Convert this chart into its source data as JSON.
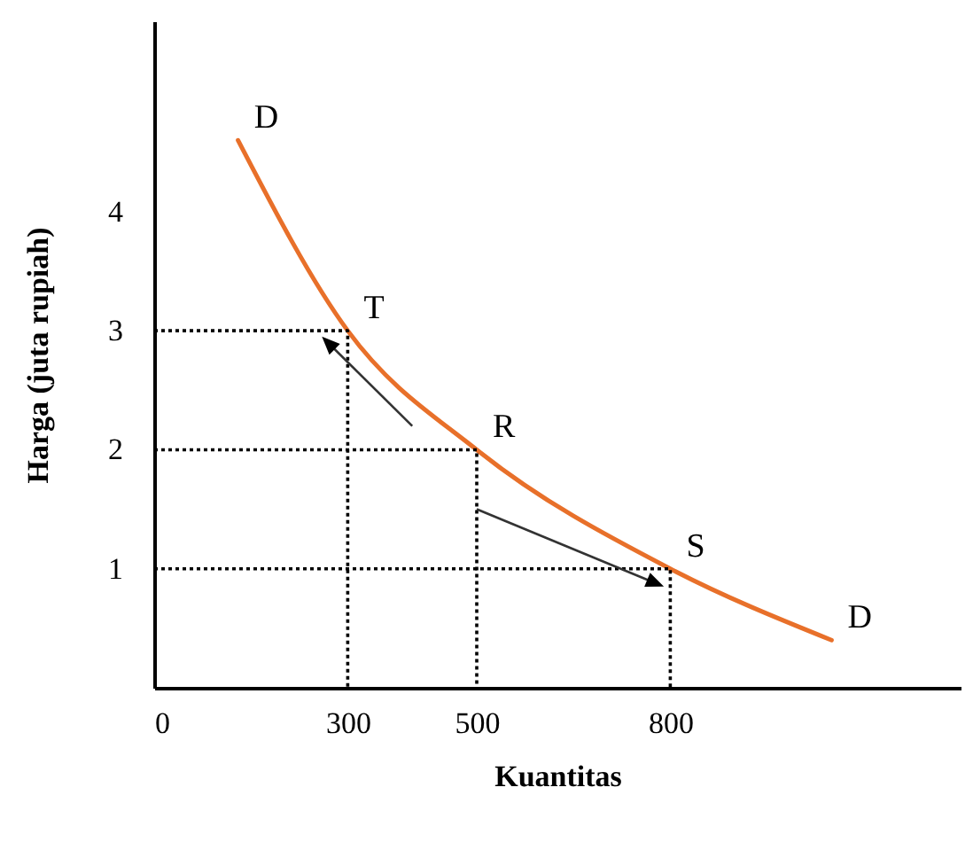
{
  "chart_data": {
    "type": "line",
    "xlabel": "Kuantitas",
    "ylabel": "Harga (juta rupiah)",
    "xlim": [
      0,
      1250
    ],
    "ylim": [
      0,
      5.6
    ],
    "xticks": [
      {
        "value": 0,
        "label": "0"
      },
      300,
      500,
      800
    ],
    "yticks": [
      1,
      2,
      3,
      4
    ],
    "grid": false,
    "marker": "none",
    "series": [
      {
        "color": "#e8702a",
        "line_style": "solid",
        "x": [
          130,
          300,
          500,
          800,
          1050
        ],
        "values": [
          4.6,
          3,
          2,
          1,
          0.4
        ]
      },
      {
        "color": "#000000",
        "line_style": "dotted",
        "x": [
          0,
          300,
          300
        ],
        "values": [
          3,
          3,
          0
        ]
      },
      {
        "color": "#000000",
        "line_style": "dotted",
        "x": [
          0,
          500,
          500
        ],
        "values": [
          2,
          2,
          0
        ]
      },
      {
        "color": "#000000",
        "line_style": "dotted",
        "x": [
          0,
          800,
          800
        ],
        "values": [
          1,
          1,
          0
        ]
      }
    ],
    "annotations": [
      {
        "text": "D",
        "x": 130,
        "y": 4.6
      },
      {
        "text": "T",
        "x": 300,
        "y": 3
      },
      {
        "text": "R",
        "x": 500,
        "y": 2
      },
      {
        "text": "S",
        "x": 800,
        "y": 1
      },
      {
        "text": "D",
        "x": 1050,
        "y": 0.4
      }
    ]
  }
}
